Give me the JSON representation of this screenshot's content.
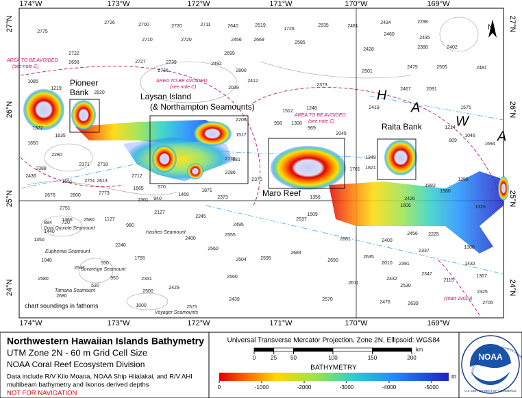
{
  "map": {
    "lon_labels": [
      "174°W",
      "173°W",
      "172°W",
      "171°W",
      "170°W",
      "169°W"
    ],
    "lat_labels": [
      "27°N",
      "26°N",
      "25°N",
      "24°N"
    ],
    "features": [
      "Pioneer",
      "Bank",
      "Laysan Island",
      "(& Northampton Seamounts)",
      "Maro Reef",
      "Raita Bank",
      "H",
      "A",
      "W",
      "A"
    ],
    "avoided": [
      "AREA TO BE AVOIDED",
      "(see note C)",
      "AREA TO BE AVOIDED",
      "(see note C)",
      "AREA TO BE AVOIDED",
      "(see note C)"
    ],
    "seamounts": [
      "Doni Quixote Seamount",
      "Hasheo Seamount",
      "Euphemia Seamount",
      "Sovareign Seamount",
      "Tamana Seamount",
      "Voyager Seamounts"
    ],
    "notes": [
      "chart soundings in fathoms",
      "(chart 19019)",
      "N"
    ],
    "soundings": [
      2775,
      2726,
      2700,
      2720,
      2711,
      2640,
      2519,
      1726,
      2535,
      2481,
      2434,
      2298,
      2710,
      2720,
      2456,
      2669,
      2585,
      2460,
      2435,
      2388,
      2402,
      2722,
      2727,
      2739,
      2699,
      2428,
      2698,
      2736,
      2492,
      2800,
      2501,
      2475,
      2505,
      2481,
      2412,
      2373,
      2467,
      2091,
      1085,
      1219,
      2820,
      2039,
      2419,
      1575,
      1248,
      1512,
      2206,
      998,
      1308,
      969,
      1322,
      1635,
      2045,
      1214,
      809,
      1046,
      1694,
      1650,
      2280,
      2171,
      2718,
      2712,
      2613,
      2751,
      2388,
      2436,
      1551,
      1665,
      570,
      1469,
      1871,
      2373,
      2286,
      2176,
      1517,
      631,
      2370,
      2678,
      2800,
      2773,
      2301,
      940,
      2751,
      1366,
      2580,
      1127,
      980,
      2127,
      2245,
      2495,
      2555,
      2537,
      1356,
      1509,
      1761,
      1348,
      1821,
      1606,
      2426,
      1982,
      1980,
      1258,
      1326,
      2337,
      2400,
      2456,
      2225,
      1360,
      2661,
      2635,
      2010,
      2391,
      1432,
      884,
      720,
      1440,
      1350,
      1048,
      2547,
      550,
      1755,
      2240,
      2400,
      2560,
      2504,
      2595,
      2684,
      2690,
      2580,
      950,
      530,
      2331,
      2429,
      2560,
      2611,
      2432,
      2530,
      2347,
      2115,
      2325,
      1367,
      2439,
      2570,
      2476,
      2639,
      2705,
      2680,
      1000,
      2575,
      2500
    ]
  },
  "legend": {
    "title": "Northwestern Hawaiian Islands Bathymetry",
    "subtitle": "UTM Zone 2N - 60 m Grid Cell Size",
    "division": "NOAA Coral Reef Ecosystem Division",
    "data_note_1": "Data include R/V Kilo Moana, NOAA Ship Hiialakai, and R/V AHI",
    "data_note_2": "multibeam bathymetry and Ikonos derived depths",
    "warning": "NOT FOR NAVIGATION",
    "projection": "Universal Transverse Mercator Projection, Zone 2N, Ellipsoid: WGS84",
    "scale_ticks": [
      0,
      25,
      50,
      100,
      150,
      200
    ],
    "scale_unit": "km",
    "bathymetry_title": "BATHYMETRY",
    "bathymetry_ticks": [
      0,
      -1000,
      -2000,
      -3000,
      -4000,
      -5000
    ],
    "bathymetry_unit": "m",
    "logo": "NOAA",
    "logo_ring_top": "NATIONAL OCEANIC AND ATMOSPHERIC ADMINISTRATION",
    "logo_ring_bottom": "U.S. DEPARTMENT OF COMMERCE"
  }
}
